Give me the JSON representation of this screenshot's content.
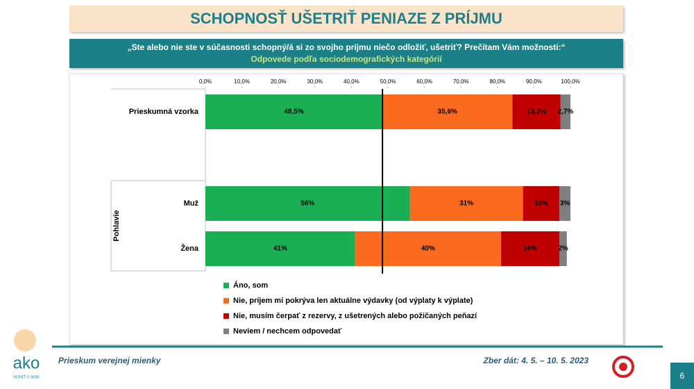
{
  "header": {
    "title": "SCHOPNOSŤ UŠETRIŤ PENIAZE Z PRÍJMU",
    "question": "„Ste alebo nie ste v súčasnosti schopný/á si zo svojho príjmu niečo odložiť, ušetriť? Prečítam Vám možnosti:“",
    "subtitle": "Odpovede podľa sociodemografických kategórií"
  },
  "chart_data": {
    "type": "stacked-bar",
    "orientation": "horizontal",
    "categories": [
      "Prieskumná vzorka",
      "Muž",
      "Žena"
    ],
    "group_label": "Pohlavie",
    "xlim": [
      0,
      100
    ],
    "xticks": [
      {
        "value": 0,
        "label": "0,0%"
      },
      {
        "value": 10,
        "label": "10,0%"
      },
      {
        "value": 20,
        "label": "20,0%"
      },
      {
        "value": 30,
        "label": "30,0%"
      },
      {
        "value": 40,
        "label": "40,0%"
      },
      {
        "value": 50,
        "label": "50,0%"
      },
      {
        "value": 60,
        "label": "60,0%"
      },
      {
        "value": 70,
        "label": "70,0%"
      },
      {
        "value": 80,
        "label": "80,0%"
      },
      {
        "value": 90,
        "label": "90,0%"
      },
      {
        "value": 100,
        "label": "100,0%"
      }
    ],
    "reference_line": 48.5,
    "series": [
      {
        "name": "Áno, som",
        "color": "#1aaf54",
        "values": [
          48.5,
          56,
          41
        ],
        "value_labels": [
          "48,5%",
          "56%",
          "41%"
        ]
      },
      {
        "name": "Nie, príjem mi pokrýva len aktuálne výdavky (od výplaty k výplate)",
        "color": "#fa6a1f",
        "values": [
          35.6,
          31,
          40
        ],
        "value_labels": [
          "35,6%",
          "31%",
          "40%"
        ]
      },
      {
        "name": "Nie, musím čerpať z rezervy, z ušetrených alebo požičaných peňazí",
        "color": "#c00000",
        "values": [
          13.2,
          10,
          16
        ],
        "value_labels": [
          "13,2%",
          "10%",
          "16%"
        ]
      },
      {
        "name": "Neviem / nechcem odpovedať",
        "color": "#7f7f7f",
        "values": [
          2.7,
          3,
          2
        ],
        "value_labels": [
          "2,7%",
          "3%",
          "2%"
        ]
      }
    ]
  },
  "footer": {
    "left": "Prieskum verejnej mienky",
    "right": "Zber dát: 4. 5. – 10. 5. 2023",
    "page": "6"
  },
  "logo": {
    "text": "ako",
    "tagline": "VEDIEŤ O SEBE"
  }
}
